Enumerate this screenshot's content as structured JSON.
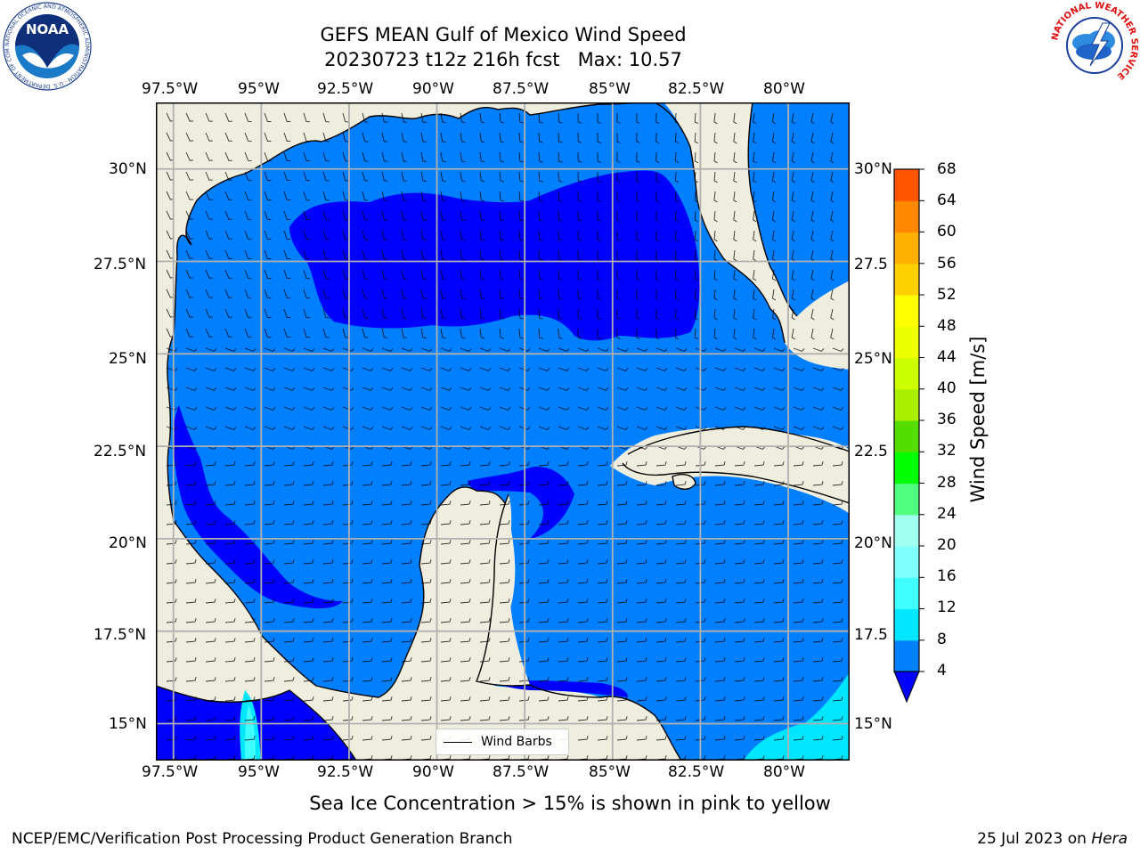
{
  "title": {
    "line1": "GEFS MEAN Gulf of Mexico Wind Speed",
    "line2": "20230723 t12z 216h fcst   Max: 10.57"
  },
  "map": {
    "lon_labels": [
      "97.5°W",
      "95°W",
      "92.5°W",
      "90°W",
      "87.5°W",
      "85°W",
      "82.5°W",
      "80°W"
    ],
    "lon_values": [
      -97.5,
      -95,
      -92.5,
      -90,
      -87.5,
      -85,
      -82.5,
      -80
    ],
    "lat_labels": [
      "30°N",
      "27.5°N",
      "25°N",
      "22.5°N",
      "20°N",
      "17.5°N",
      "15°N"
    ],
    "lat_labels_right": [
      "30°N",
      "27.5",
      "25°N",
      "22.5",
      "20°N",
      "17.5",
      "15°N"
    ],
    "lat_values": [
      30,
      27.5,
      25,
      22.5,
      20,
      17.5,
      15
    ],
    "extent": {
      "lon_min": -98,
      "lon_max": -78.25,
      "lat_min": 14,
      "lat_max": 31.8
    },
    "land_color": "#efedde",
    "grid_color": "#b0b0b0"
  },
  "legend": {
    "label": "Wind Barbs"
  },
  "colorbar": {
    "title": "Wind Speed [m/s]",
    "ticks": [
      "68",
      "64",
      "60",
      "56",
      "52",
      "48",
      "44",
      "40",
      "36",
      "32",
      "28",
      "24",
      "20",
      "16",
      "12",
      "8",
      "4"
    ],
    "levels": [
      4,
      8,
      12,
      16,
      20,
      24,
      28,
      32,
      36,
      40,
      44,
      48,
      52,
      56,
      60,
      64,
      68
    ],
    "colors": [
      "#0080ff",
      "#00e6ff",
      "#40ffff",
      "#80ffff",
      "#a0ffef",
      "#50ff80",
      "#00ff00",
      "#55dd00",
      "#aaee00",
      "#ccff00",
      "#eeff00",
      "#ffff00",
      "#ffd000",
      "#ffb000",
      "#ff8800",
      "#ff5500",
      "#ff2000",
      "#ff0000"
    ],
    "under_color": "#0000ff"
  },
  "subtitle": "Sea Ice Concentration > 15% is shown in pink to yellow",
  "footer": {
    "left": "NCEP/EMC/Verification Post Processing Product Generation Branch",
    "right_date": "25 Jul 2023 on",
    "right_host": "Hera"
  },
  "logos": {
    "noaa": {
      "text": "NOAA",
      "ring_text": "NATIONAL OCEANIC AND ATMOSPHERIC ADMINISTRATION · U.S. DEPARTMENT OF COMMERCE"
    },
    "nws": {
      "ring_text": "NATIONAL WEATHER SERVICE"
    }
  },
  "colors": {
    "band_lt": "#0080ff",
    "band_dk": "#0000ff",
    "band_cyan": "#00e6ff",
    "band_pale": "#40ffff"
  }
}
